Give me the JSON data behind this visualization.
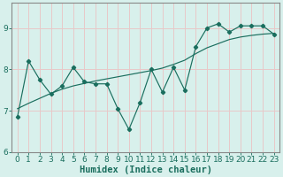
{
  "xlabel": "Humidex (Indice chaleur)",
  "background_color": "#d8f0ec",
  "grid_color": "#e8c8c8",
  "line_color": "#1a6e5e",
  "x_values": [
    0,
    1,
    2,
    3,
    4,
    5,
    6,
    7,
    8,
    9,
    10,
    11,
    12,
    13,
    14,
    15,
    16,
    17,
    18,
    19,
    20,
    21,
    22,
    23
  ],
  "y_line1": [
    6.85,
    8.2,
    7.75,
    7.4,
    7.6,
    8.05,
    7.7,
    7.65,
    7.65,
    7.05,
    6.55,
    7.2,
    8.0,
    7.45,
    8.05,
    7.5,
    8.55,
    9.0,
    9.1,
    8.9,
    9.05,
    9.05,
    9.05,
    8.85
  ],
  "y_trend": [
    7.05,
    7.18,
    7.3,
    7.42,
    7.52,
    7.6,
    7.66,
    7.72,
    7.77,
    7.82,
    7.87,
    7.92,
    7.97,
    8.03,
    8.12,
    8.22,
    8.38,
    8.52,
    8.62,
    8.72,
    8.78,
    8.82,
    8.85,
    8.87
  ],
  "ylim": [
    6.0,
    9.6
  ],
  "xlim": [
    -0.5,
    23.5
  ],
  "yticks": [
    6,
    7,
    8,
    9
  ],
  "xticks": [
    0,
    1,
    2,
    3,
    4,
    5,
    6,
    7,
    8,
    9,
    10,
    11,
    12,
    13,
    14,
    15,
    16,
    17,
    18,
    19,
    20,
    21,
    22,
    23
  ],
  "tick_fontsize": 6.5,
  "label_fontsize": 7.5,
  "spine_color": "#888888"
}
